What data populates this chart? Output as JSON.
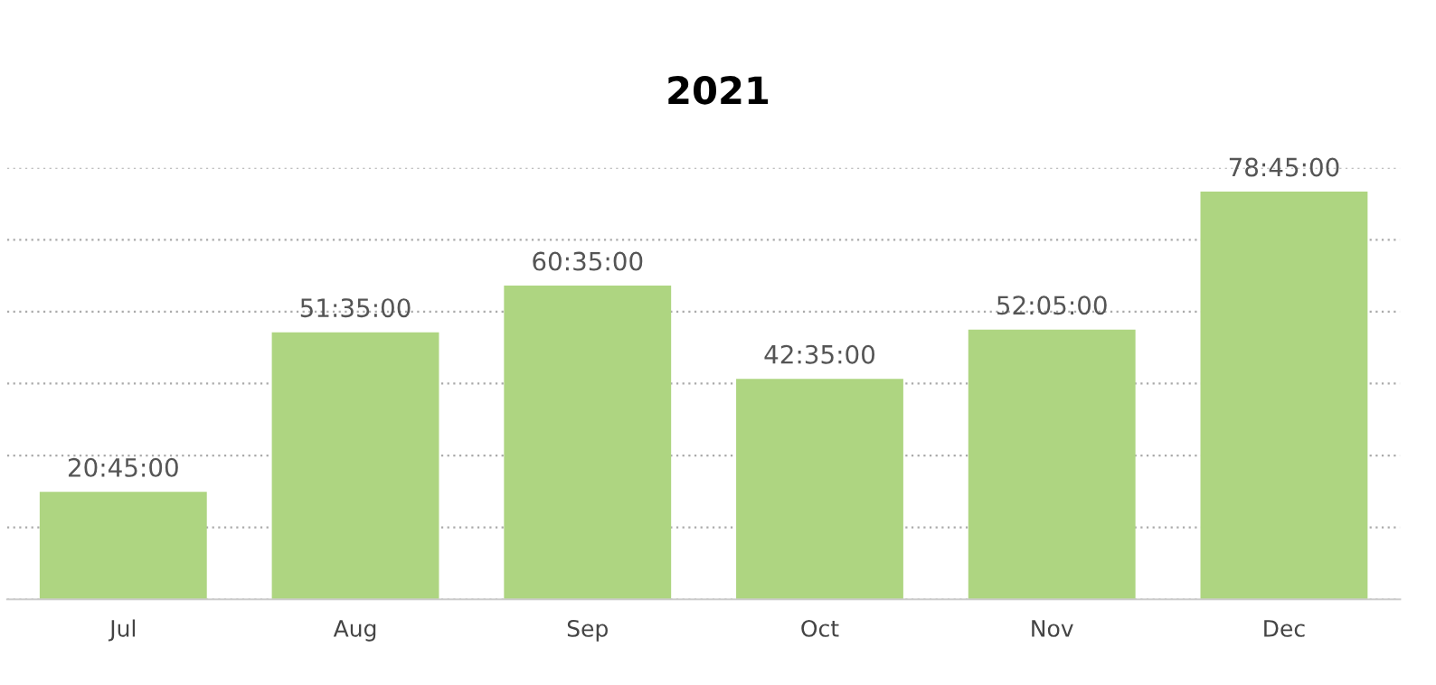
{
  "chart_data": {
    "type": "bar",
    "title": "2021",
    "categories": [
      "Jul",
      "Aug",
      "Sep",
      "Oct",
      "Nov",
      "Dec"
    ],
    "values": [
      74700,
      185700,
      218100,
      153300,
      187500,
      283500
    ],
    "value_labels": [
      "20:45:00",
      "51:35:00",
      "60:35:00",
      "42:35:00",
      "52:05:00",
      "78:45:00"
    ],
    "color": "#aed581",
    "ylim": [
      0,
      300000
    ],
    "yticks": [
      {
        "value": 0,
        "label": null
      },
      {
        "value": 50000,
        "label": null
      },
      {
        "value": 100000,
        "label": null
      },
      {
        "value": 150000,
        "label": null
      },
      {
        "value": 200000,
        "label": null
      },
      {
        "value": 250000,
        "label": null
      },
      {
        "value": 300000,
        "label": null
      }
    ],
    "tick_labels": "x",
    "grid": "y"
  }
}
